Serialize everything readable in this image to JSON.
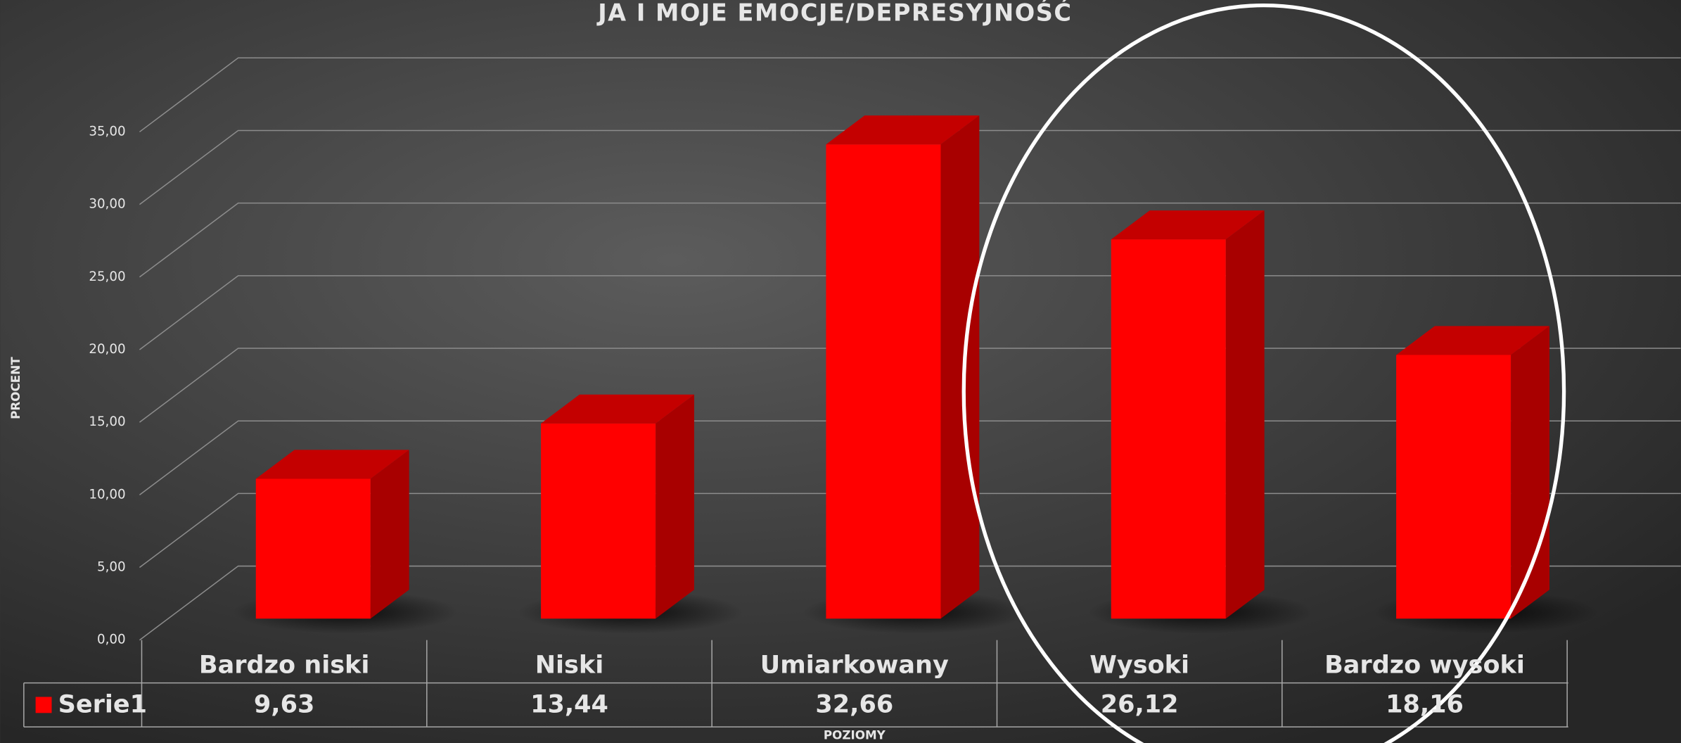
{
  "chart_data": {
    "type": "bar3d",
    "title": "JA I MOJE EMOCJE/DEPRESYJNOŚĆ",
    "y_label": "PROCENT",
    "x_label": "POZIOMY",
    "categories": [
      "Bardzo niski",
      "Niski",
      "Umiarkowany",
      "Wysoki",
      "Bardzo wysoki"
    ],
    "series": [
      {
        "name": "Serie1",
        "color": "#ff0000",
        "values": [
          9.63,
          13.44,
          32.66,
          26.12,
          18.16
        ],
        "value_labels": [
          "9,63",
          "13,44",
          "32,66",
          "26,12",
          "18,16"
        ]
      }
    ],
    "ylim": [
      0,
      35
    ],
    "yticks": [
      {
        "value": 0,
        "label": "0,00"
      },
      {
        "value": 5,
        "label": "5,00"
      },
      {
        "value": 10,
        "label": "10,00"
      },
      {
        "value": 15,
        "label": "15,00"
      },
      {
        "value": 20,
        "label": "20,00"
      },
      {
        "value": 25,
        "label": "25,00"
      },
      {
        "value": 30,
        "label": "30,00"
      },
      {
        "value": 35,
        "label": "35,00"
      }
    ],
    "grid": true,
    "data_table": true
  }
}
